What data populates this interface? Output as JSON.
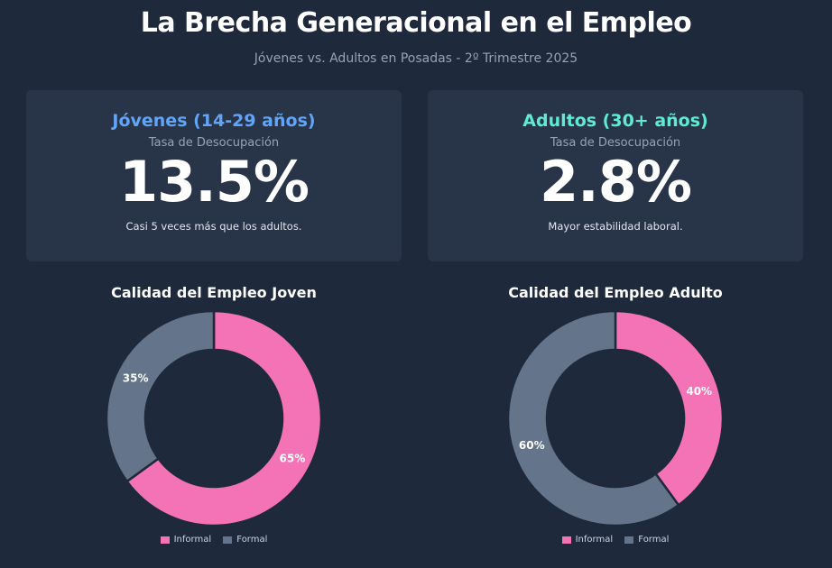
{
  "header": {
    "title": "La Brecha Generacional en el Empleo",
    "subtitle": "Jóvenes vs. Adultos en Posadas - 2º Trimestre 2025"
  },
  "cards": {
    "young": {
      "title": "Jóvenes (14-29 años)",
      "label": "Tasa de Desocupación",
      "value": "13.5%",
      "note": "Casi 5 veces más que los adultos."
    },
    "adult": {
      "title": "Adultos (30+ años)",
      "label": "Tasa de Desocupación",
      "value": "2.8%",
      "note": "Mayor estabilidad laboral."
    }
  },
  "colors": {
    "informal": "#f472b6",
    "formal": "#64748b",
    "background": "#1e293b",
    "card": "#283548"
  },
  "chart_data": [
    {
      "type": "pie",
      "title": "Calidad del Empleo Joven",
      "categories": [
        "Informal",
        "Formal"
      ],
      "values": [
        65,
        35
      ],
      "data_labels": [
        "65%",
        "35%"
      ],
      "legend": "bottom"
    },
    {
      "type": "pie",
      "title": "Calidad del Empleo Adulto",
      "categories": [
        "Informal",
        "Formal"
      ],
      "values": [
        40,
        60
      ],
      "data_labels": [
        "40%",
        "60%"
      ],
      "legend": "bottom"
    }
  ]
}
